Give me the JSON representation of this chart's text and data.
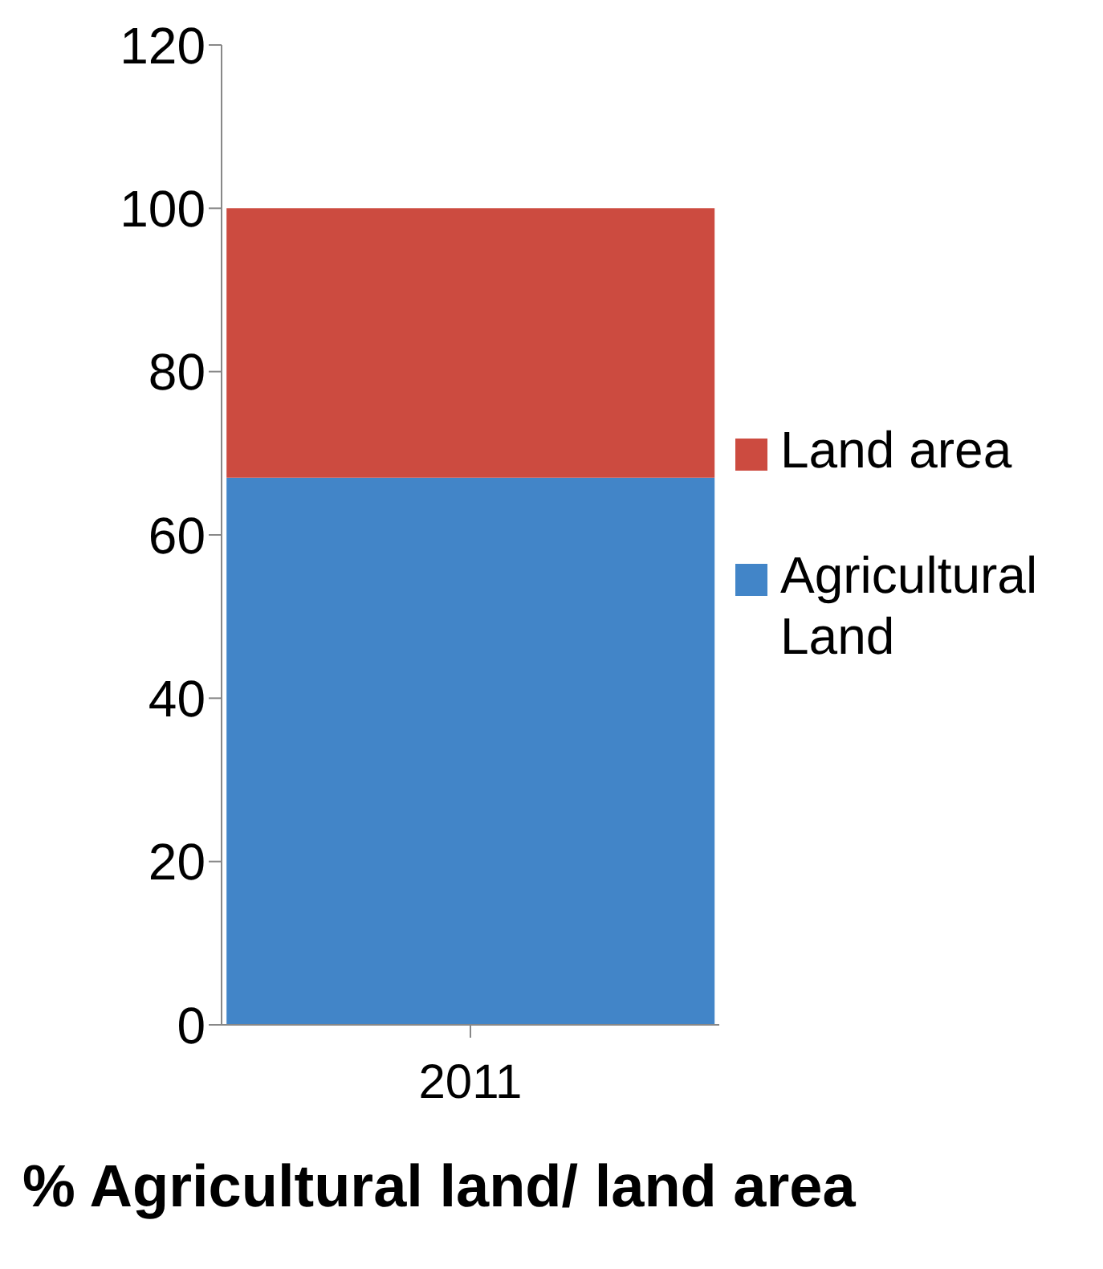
{
  "chart_data": {
    "type": "bar",
    "title": "% Agricultural land/ land area",
    "categories": [
      "2011"
    ],
    "stacked": true,
    "series": [
      {
        "name": "Agricultural Land",
        "color": "#4285c8",
        "values": [
          67
        ]
      },
      {
        "name": "Land area",
        "color": "#cc4b40",
        "values": [
          33
        ]
      }
    ],
    "ylim": [
      0,
      120
    ],
    "yticks": [
      0,
      20,
      40,
      60,
      80,
      100,
      120
    ],
    "grid": false,
    "legend": "right"
  }
}
